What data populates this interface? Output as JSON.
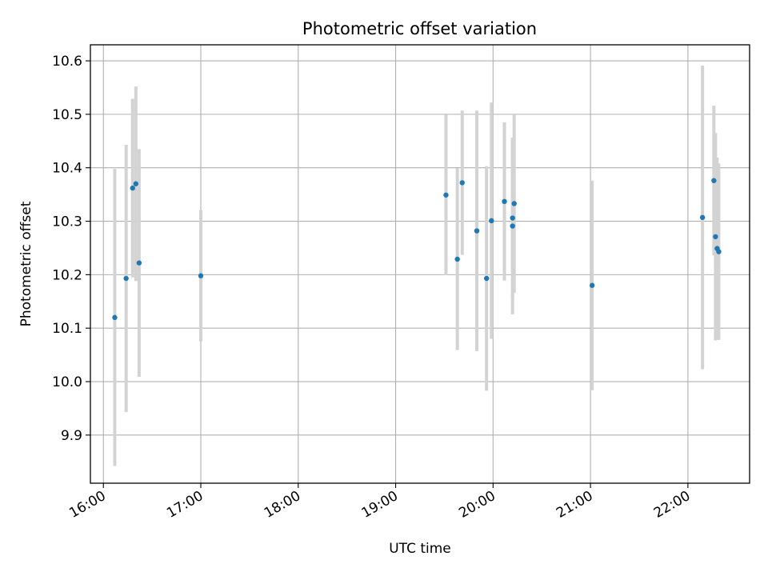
{
  "chart_data": {
    "type": "scatter",
    "title": "Photometric offset variation",
    "xlabel": "UTC time",
    "ylabel": "Photometric offset",
    "x_tick_labels": [
      "16:00",
      "17:00",
      "18:00",
      "19:00",
      "20:00",
      "21:00",
      "22:00"
    ],
    "y_tick_labels": [
      "9.9",
      "10.0",
      "10.1",
      "10.2",
      "10.3",
      "10.4",
      "10.5",
      "10.6"
    ],
    "xlim": [
      "15:52",
      "22:38"
    ],
    "ylim": [
      9.81,
      10.63
    ],
    "grid": true,
    "point_color": "#1f77b4",
    "errorbar_color": "#d3d3d3",
    "points": [
      {
        "x": "16:07",
        "y": 10.12,
        "yerr": 0.278
      },
      {
        "x": "16:14",
        "y": 10.193,
        "yerr": 0.25
      },
      {
        "x": "16:18",
        "y": 10.362,
        "yerr": 0.167
      },
      {
        "x": "16:20",
        "y": 10.37,
        "yerr": 0.182
      },
      {
        "x": "16:22",
        "y": 10.222,
        "yerr": 0.213
      },
      {
        "x": "17:00",
        "y": 10.198,
        "yerr": 0.123
      },
      {
        "x": "19:31",
        "y": 10.349,
        "yerr": 0.15
      },
      {
        "x": "19:38",
        "y": 10.229,
        "yerr": 0.17
      },
      {
        "x": "19:41",
        "y": 10.372,
        "yerr": 0.135
      },
      {
        "x": "19:50",
        "y": 10.282,
        "yerr": 0.225
      },
      {
        "x": "19:56",
        "y": 10.193,
        "yerr": 0.21
      },
      {
        "x": "19:59",
        "y": 10.301,
        "yerr": 0.221
      },
      {
        "x": "20:07",
        "y": 10.337,
        "yerr": 0.148
      },
      {
        "x": "20:12",
        "y": 10.291,
        "yerr": 0.165
      },
      {
        "x": "20:12",
        "y": 10.306,
        "yerr": 0.15
      },
      {
        "x": "20:13",
        "y": 10.333,
        "yerr": 0.167
      },
      {
        "x": "21:01",
        "y": 10.18,
        "yerr": 0.196
      },
      {
        "x": "22:09",
        "y": 10.307,
        "yerr": 0.284
      },
      {
        "x": "22:16",
        "y": 10.376,
        "yerr": 0.14
      },
      {
        "x": "22:17",
        "y": 10.271,
        "yerr": 0.194
      },
      {
        "x": "22:18",
        "y": 10.249,
        "yerr": 0.17
      },
      {
        "x": "22:19",
        "y": 10.243,
        "yerr": 0.165
      }
    ]
  }
}
